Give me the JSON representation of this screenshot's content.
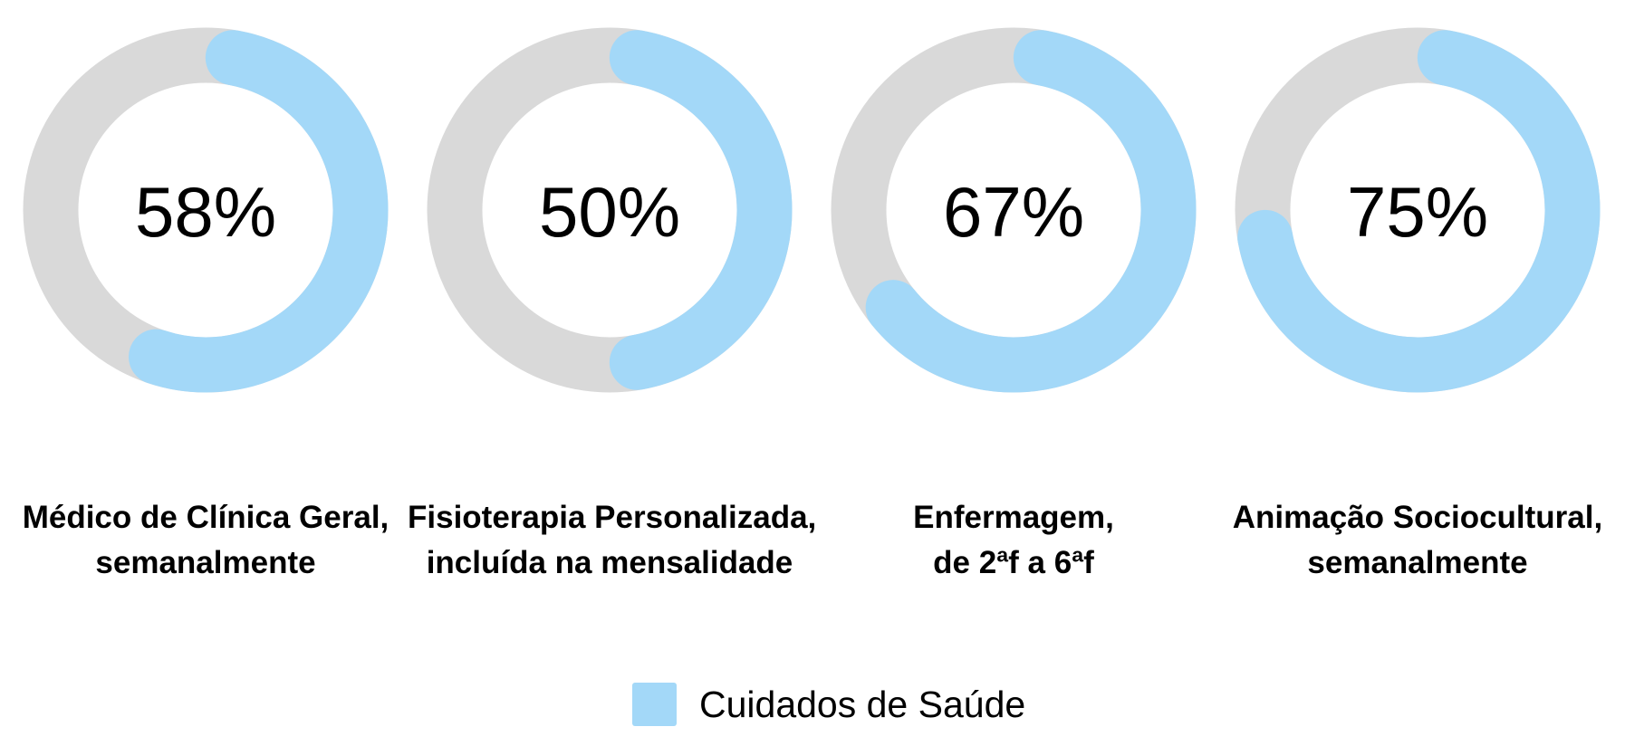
{
  "chart_data": {
    "type": "donut",
    "title": "",
    "series_name": "Cuidados de Saúde",
    "categories": [
      "Médico de Clínica Geral, semanalmente",
      "Fisioterapia Personalizada, incluída na mensalidade",
      "Enfermagem, de 2ªf a 6ªf",
      "Animação Sociocultural, semanalmente"
    ],
    "values": [
      58,
      50,
      67,
      75
    ],
    "unit": "%",
    "max": 100,
    "legend_position": "bottom"
  },
  "colors": {
    "fill": "#A3D8F8",
    "track": "#D9D9D9"
  },
  "donuts": [
    {
      "value": 58,
      "pct_label": "58%",
      "label_line1": "Médico de Clínica Geral,",
      "label_line2": "semanalmente"
    },
    {
      "value": 50,
      "pct_label": "50%",
      "label_line1": "Fisioterapia Personalizada,",
      "label_line2": "incluída na mensalidade"
    },
    {
      "value": 67,
      "pct_label": "67%",
      "label_line1": "Enfermagem,",
      "label_line2": "de 2ªf a 6ªf"
    },
    {
      "value": 75,
      "pct_label": "75%",
      "label_line1": "Animação Sociocultural,",
      "label_line2": "semanalmente"
    }
  ],
  "legend": {
    "label": "Cuidados de Saúde",
    "color": "#A3D8F8"
  }
}
